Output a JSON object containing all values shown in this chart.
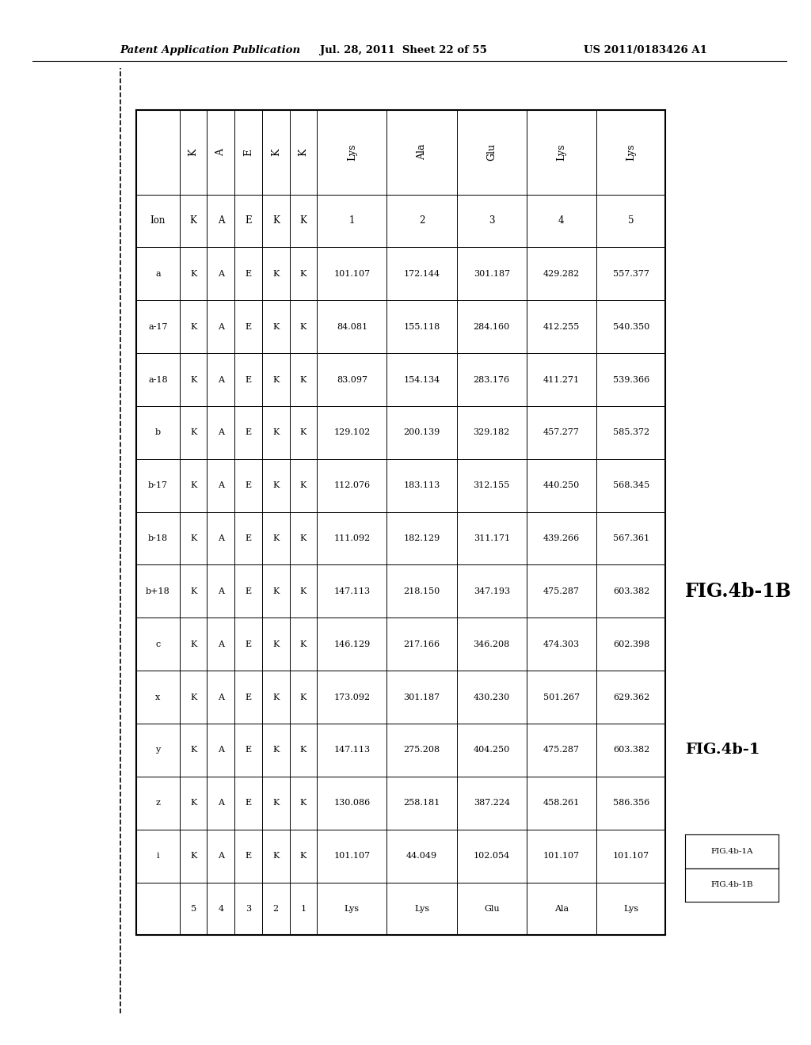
{
  "patent_header": "Patent Application Publication",
  "patent_date": "Jul. 28, 2011  Sheet 22 of 55",
  "patent_number": "US 2011/0183426 A1",
  "fig_label_big": "FIG.4b-1B",
  "fig_label_med": "FIG.4b-1",
  "fig_legend_a": "FIG.4b-1A",
  "fig_legend_b": "FIG.4b-1B",
  "col_headers_aa": [
    "Lys",
    "Ala",
    "Glu",
    "Lys",
    "Lys"
  ],
  "col_headers_num": [
    "1",
    "2",
    "3",
    "4",
    "5"
  ],
  "seq_letters": [
    "K",
    "A",
    "E",
    "K",
    "K"
  ],
  "seq_numbers_top": [
    "1",
    "2",
    "3",
    "4",
    "5"
  ],
  "ion_labels": [
    "Ion",
    "a",
    "a-17",
    "a-18",
    "b",
    "b-17",
    "b-18",
    "b+18",
    "c",
    "x",
    "y",
    "z",
    "i",
    ""
  ],
  "value_data": [
    [
      "101.107",
      "172.144",
      "301.187",
      "429.282",
      "557.377"
    ],
    [
      "84.081",
      "155.118",
      "284.160",
      "412.255",
      "540.350"
    ],
    [
      "83.097",
      "154.134",
      "283.176",
      "411.271",
      "539.366"
    ],
    [
      "129.102",
      "200.139",
      "329.182",
      "457.277",
      "585.372"
    ],
    [
      "112.076",
      "183.113",
      "312.155",
      "440.250",
      "568.345"
    ],
    [
      "111.092",
      "182.129",
      "311.171",
      "439.266",
      "567.361"
    ],
    [
      "147.113",
      "218.150",
      "347.193",
      "475.287",
      "603.382"
    ],
    [
      "146.129",
      "217.166",
      "346.208",
      "474.303",
      "602.398"
    ],
    [
      "173.092",
      "301.187",
      "430.230",
      "501.267",
      "629.362"
    ],
    [
      "147.113",
      "275.208",
      "404.250",
      "475.287",
      "603.382"
    ],
    [
      "130.086",
      "258.181",
      "387.224",
      "458.261",
      "586.356"
    ],
    [
      "101.107",
      "44.049",
      "102.054",
      "101.107",
      "101.107"
    ]
  ],
  "footer_seq": [
    "5",
    "4",
    "3",
    "2",
    "1"
  ],
  "footer_aa": [
    "Lys",
    "Lys",
    "Glu",
    "Ala",
    "Lys"
  ],
  "bg_color": "#ffffff"
}
